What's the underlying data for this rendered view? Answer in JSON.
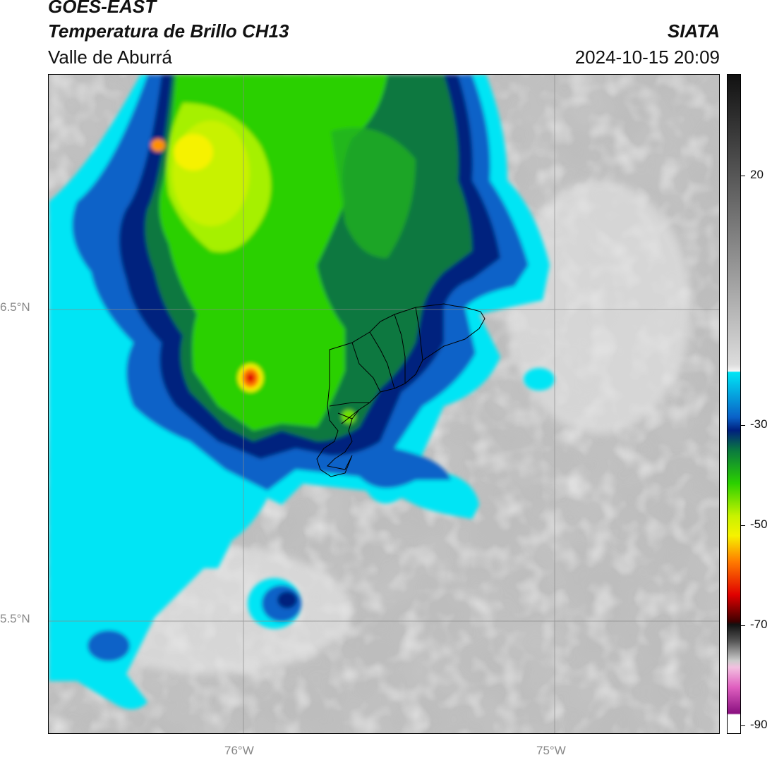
{
  "header": {
    "satellite": "GOES-EAST",
    "product": "Temperatura de Brillo CH13",
    "region": "Valle de Aburrá",
    "organization": "SIATA",
    "timestamp": "2024-10-15 20:09"
  },
  "axes": {
    "lat_labels": [
      "6.5°N",
      "5.5°N"
    ],
    "lon_labels": [
      "76°W",
      "75°W"
    ]
  },
  "colorbar": {
    "tick_labels": [
      "20",
      "-30",
      "-50",
      "-70",
      "-90"
    ],
    "range": [
      -90,
      40
    ],
    "palette": {
      "cyan": "#00e5f5",
      "blue": "#0050b0",
      "navy": "#001a7a",
      "dark_green": "#006c3c",
      "green": "#2cd000",
      "lime": "#a6f000",
      "yellow": "#f6f200",
      "orange": "#ff7a00",
      "red": "#e00000",
      "magenta": "#c03aa0",
      "gray_light": "#e4e4e4",
      "gray_dark": "#7a7a7a"
    }
  }
}
